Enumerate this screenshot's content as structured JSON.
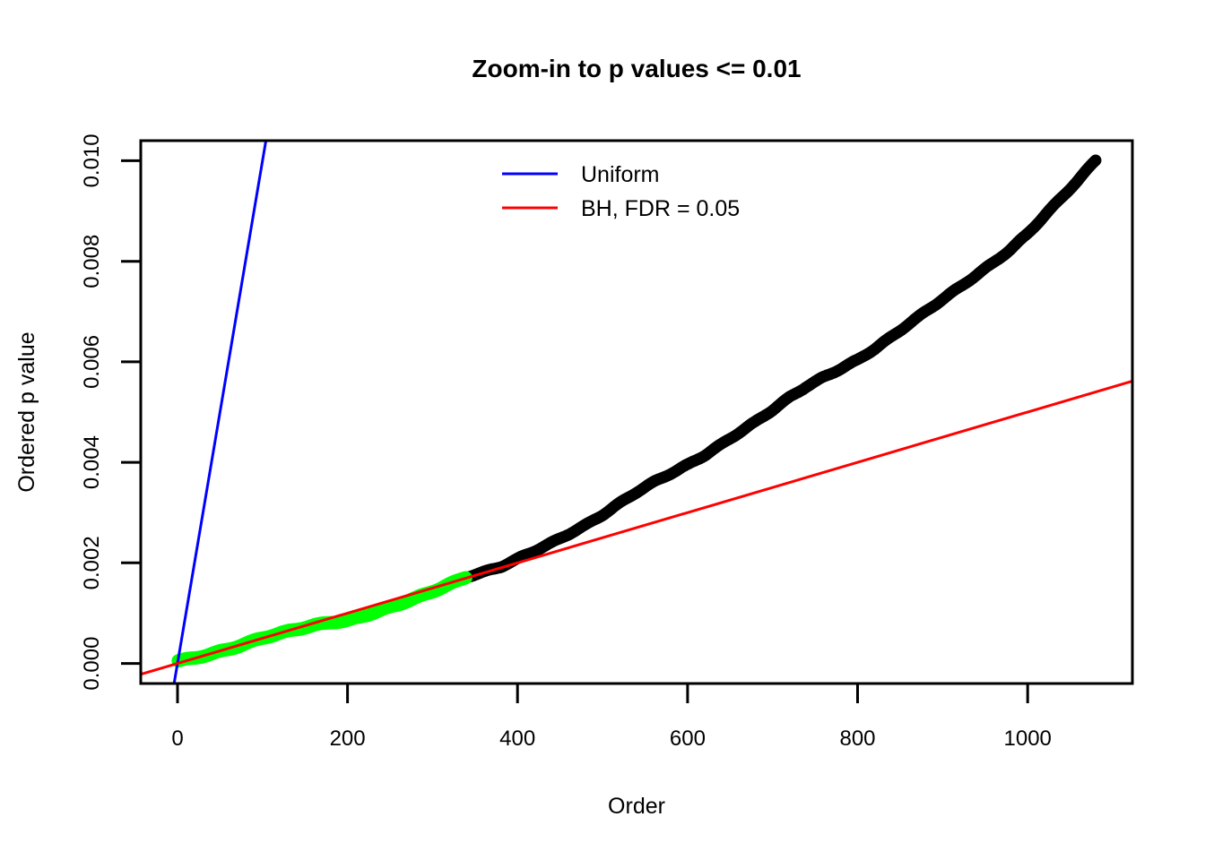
{
  "chart_data": {
    "type": "scatter",
    "title": "Zoom-in to p values <= 0.01",
    "xlabel": "Order",
    "ylabel": "Ordered p value",
    "x_ticks": [
      0,
      200,
      400,
      600,
      800,
      1000
    ],
    "x_tick_labels": [
      "0",
      "200",
      "400",
      "600",
      "800",
      "1000"
    ],
    "y_ticks": [
      0.0,
      0.002,
      0.004,
      0.006,
      0.008,
      0.01
    ],
    "y_tick_labels": [
      "0.000",
      "0.002",
      "0.004",
      "0.006",
      "0.008",
      "0.010"
    ],
    "xlim": [
      0,
      1080
    ],
    "ylim": [
      0,
      0.01
    ],
    "x_usr": [
      -43.2,
      1123.2
    ],
    "y_usr": [
      -0.0004,
      0.0104
    ],
    "grid": false,
    "legend_position": "top-center-inside",
    "legend": [
      {
        "label": "Uniform",
        "color": "#0000FF"
      },
      {
        "label": "BH, FDR = 0.05",
        "color": "#FF0000"
      }
    ],
    "lines": [
      {
        "name": "uniform-reference-line",
        "color": "#0000FF",
        "slope": 0.0001,
        "intercept": 0
      },
      {
        "name": "bh-threshold-line",
        "color": "#FF0000",
        "slope": 5e-06,
        "intercept": 0
      }
    ],
    "series": [
      {
        "name": "ordered-p-values-not-significant",
        "color": "#000000",
        "point_radius": 6.5,
        "anchors": [
          [
            342,
            0.00174
          ],
          [
            360,
            0.00182
          ],
          [
            380,
            0.00192
          ],
          [
            400,
            0.00207
          ],
          [
            420,
            0.00223
          ],
          [
            440,
            0.0024
          ],
          [
            460,
            0.00258
          ],
          [
            480,
            0.00276
          ],
          [
            500,
            0.00296
          ],
          [
            520,
            0.00318
          ],
          [
            540,
            0.0034
          ],
          [
            560,
            0.0036
          ],
          [
            580,
            0.00378
          ],
          [
            600,
            0.00396
          ],
          [
            620,
            0.00415
          ],
          [
            640,
            0.00436
          ],
          [
            660,
            0.00458
          ],
          [
            680,
            0.0048
          ],
          [
            700,
            0.00504
          ],
          [
            720,
            0.0053
          ],
          [
            740,
            0.00552
          ],
          [
            760,
            0.0057
          ],
          [
            780,
            0.00586
          ],
          [
            800,
            0.00603
          ],
          [
            820,
            0.00625
          ],
          [
            840,
            0.0065
          ],
          [
            860,
            0.00676
          ],
          [
            880,
            0.00701
          ],
          [
            900,
            0.00725
          ],
          [
            920,
            0.00748
          ],
          [
            940,
            0.00772
          ],
          [
            960,
            0.00797
          ],
          [
            980,
            0.00824
          ],
          [
            1000,
            0.00856
          ],
          [
            1020,
            0.00892
          ],
          [
            1040,
            0.00927
          ],
          [
            1060,
            0.00962
          ],
          [
            1080,
            0.01
          ]
        ]
      },
      {
        "name": "ordered-p-values-bh-significant",
        "color": "#00FF00",
        "point_radius": 7.5,
        "anchors": [
          [
            1,
            4e-05
          ],
          [
            20,
            0.0001
          ],
          [
            40,
            0.00019
          ],
          [
            60,
            0.00029
          ],
          [
            80,
            0.0004
          ],
          [
            100,
            0.00051
          ],
          [
            120,
            0.00059
          ],
          [
            140,
            0.00067
          ],
          [
            160,
            0.00075
          ],
          [
            180,
            0.00082
          ],
          [
            200,
            0.00086
          ],
          [
            220,
            0.00096
          ],
          [
            240,
            0.00106
          ],
          [
            260,
            0.00117
          ],
          [
            280,
            0.00129
          ],
          [
            300,
            0.00143
          ],
          [
            320,
            0.00158
          ],
          [
            340,
            0.00173
          ]
        ]
      }
    ]
  }
}
